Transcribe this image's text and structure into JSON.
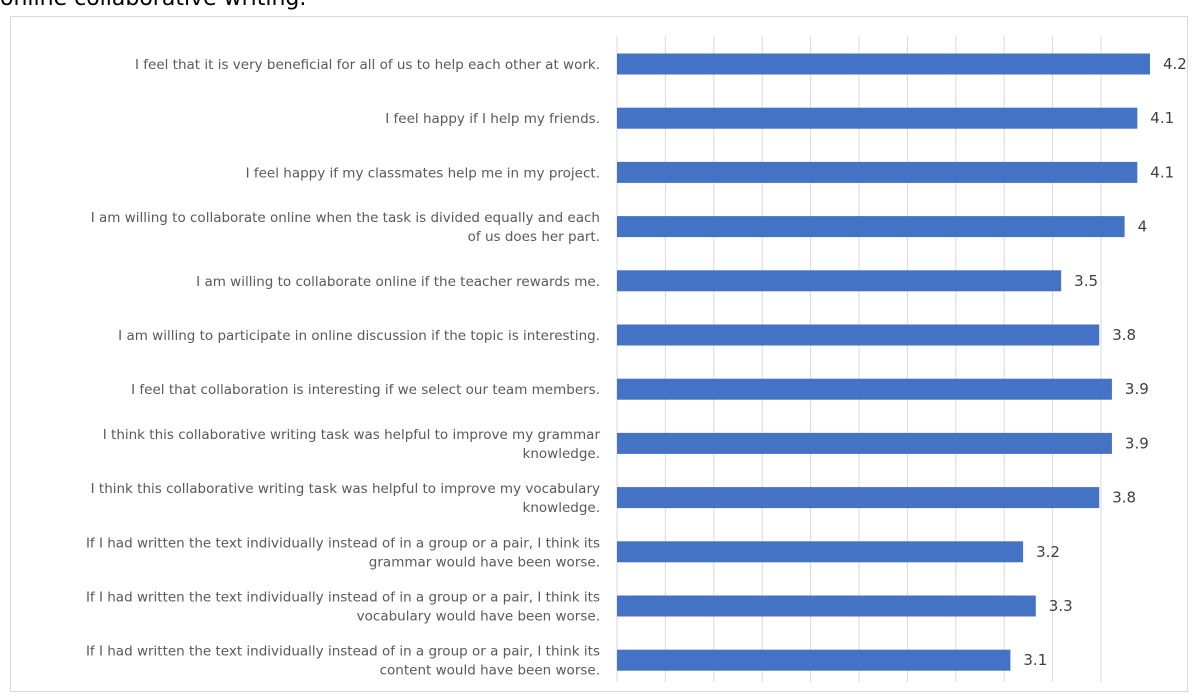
{
  "page": {
    "caption": "online collaborative writing."
  },
  "chart_data": {
    "type": "bar",
    "orientation": "horizontal",
    "categories": [
      [
        "I feel that it is very beneficial for all of us to help each other at work."
      ],
      [
        "I feel happy if I help my friends."
      ],
      [
        "I feel happy if my classmates help me in my project."
      ],
      [
        "I am willing to collaborate online when the task is divided equally and each",
        "of us does her part."
      ],
      [
        "I am willing to collaborate online if the teacher rewards me."
      ],
      [
        "I am willing to participate in online discussion if the topic is interesting."
      ],
      [
        "I feel that collaboration is interesting if we select our team members."
      ],
      [
        "I think this collaborative writing task was helpful to improve my grammar",
        "knowledge."
      ],
      [
        "I think this collaborative writing task was helpful to improve my vocabulary",
        "knowledge."
      ],
      [
        "If I had written the text individually instead of in a group or a pair, I think its",
        "grammar would have been worse."
      ],
      [
        "If I had written the text individually instead of in a group or a pair, I think its",
        "vocabulary would have been worse."
      ],
      [
        "If I had written the text individually instead of in a group or a pair, I think its",
        "content would have been worse."
      ]
    ],
    "values": [
      4.2,
      4.1,
      4.1,
      4,
      3.5,
      3.8,
      3.9,
      3.9,
      3.8,
      3.2,
      3.3,
      3.1
    ],
    "value_labels": [
      "4.2",
      "4.1",
      "4.1",
      "4",
      "3.5",
      "3.8",
      "3.9",
      "3.9",
      "3.8",
      "3.2",
      "3.3",
      "3.1"
    ],
    "xlim": [
      0,
      4.2
    ],
    "grid": true,
    "bar_color": "#4472c4",
    "gridline_color": "#d9d9d9",
    "title": "",
    "xlabel": "",
    "ylabel": ""
  }
}
